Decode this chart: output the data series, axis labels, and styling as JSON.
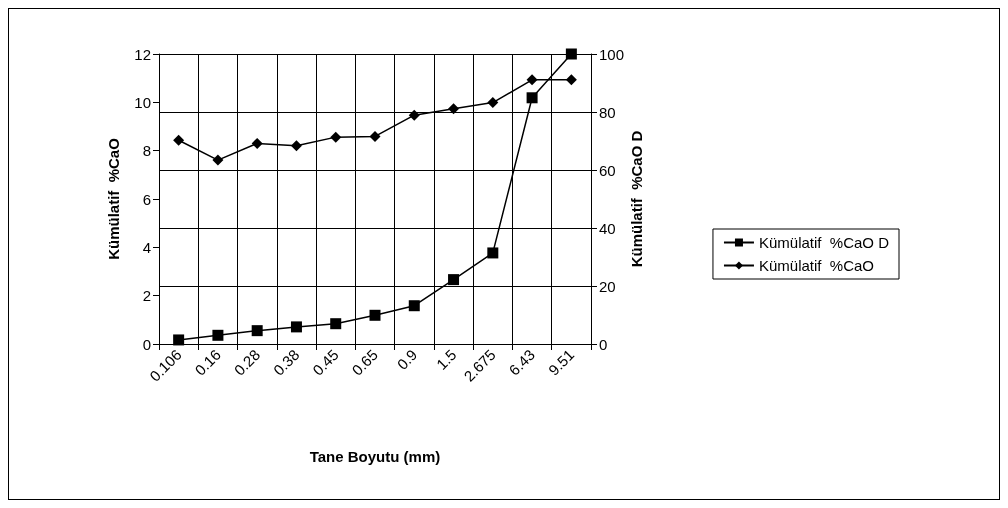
{
  "chart_data": {
    "type": "line",
    "xlabel": "Tane Boyutu (mm)",
    "ylabel": "Kümülatif  %CaO",
    "y2label": "Kümülatif  %CaO D",
    "categories": [
      "0.106",
      "0.16",
      "0.28",
      "0.38",
      "0.45",
      "0.65",
      "0.9",
      "1.5",
      "2.675",
      "6.43",
      "9.51"
    ],
    "series": [
      {
        "name": "Kümülatif  %CaO D",
        "color": "#000000",
        "axis": "y2",
        "marker": "square",
        "values": [
          1.4,
          3.0,
          4.6,
          5.9,
          7.0,
          9.9,
          13.2,
          22.2,
          31.4,
          84.9,
          100
        ]
      },
      {
        "name": "Kümülatif  %CaO",
        "color": "#000000",
        "marker": "diamond",
        "values": [
          8.43,
          7.61,
          8.3,
          8.2,
          8.56,
          8.59,
          9.47,
          9.73,
          9.99,
          10.93,
          10.93
        ]
      }
    ],
    "ylim": [
      0,
      12
    ],
    "yticks": [
      0,
      2,
      4,
      6,
      8,
      10,
      12
    ],
    "y2lim": [
      0,
      100
    ],
    "y2ticks": [
      0,
      20,
      40,
      60,
      80,
      100
    ],
    "grid": true,
    "legend": "right",
    "line_style": "solid"
  }
}
